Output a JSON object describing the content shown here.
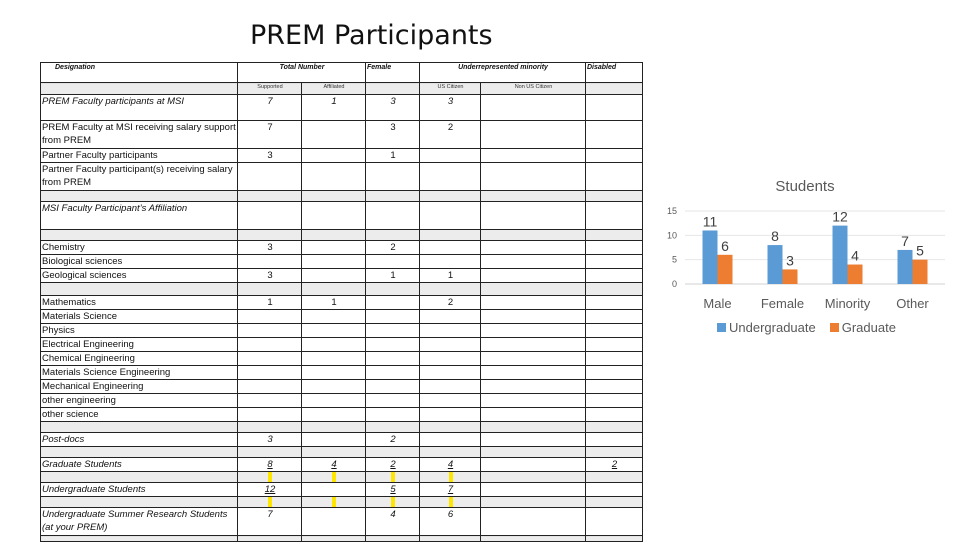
{
  "slide": {
    "title": "PREM Participants"
  },
  "table": {
    "headers": {
      "designation": "Designation",
      "total_number": "Total Number",
      "female": "Female",
      "underrepresented": "Underrepresented minority",
      "disabled": "Disabled"
    },
    "subheaders": {
      "supported": "Supported",
      "affiliated": "Affiliated",
      "us_citizen": "US Citizen",
      "non_us_citizen": "Non US Citizen"
    },
    "rows": [
      {
        "label": "PREM Faculty participants at MSI",
        "supported": "7",
        "affiliated": "1",
        "female": "3",
        "us": "3",
        "nonus": "",
        "disabled": ""
      },
      {
        "label": "PREM Faculty at MSI receiving salary support from PREM",
        "supported": "7",
        "affiliated": "",
        "female": "3",
        "us": "2",
        "nonus": "",
        "disabled": ""
      },
      {
        "label": "Partner Faculty participants",
        "supported": "3",
        "affiliated": "",
        "female": "1",
        "us": "",
        "nonus": "",
        "disabled": ""
      },
      {
        "label": "Partner Faculty participant(s) receiving salary from PREM",
        "supported": "",
        "affiliated": "",
        "female": "",
        "us": "",
        "nonus": "",
        "disabled": ""
      },
      {
        "label": "MSI Faculty Participant’s Affiliation"
      },
      {
        "label": "Chemistry",
        "supported": "3",
        "affiliated": "",
        "female": "2",
        "us": "",
        "nonus": "",
        "disabled": ""
      },
      {
        "label": "Biological sciences",
        "supported": "",
        "affiliated": "",
        "female": "",
        "us": "",
        "nonus": "",
        "disabled": ""
      },
      {
        "label": "Geological sciences",
        "supported": "3",
        "affiliated": "",
        "female": "1",
        "us": "1",
        "nonus": "",
        "disabled": ""
      },
      {
        "label": "Mathematics",
        "supported": "1",
        "affiliated": "1",
        "female": "",
        "us": "2",
        "nonus": "",
        "disabled": ""
      },
      {
        "label": "Materials Science"
      },
      {
        "label": "Physics"
      },
      {
        "label": "Electrical Engineering"
      },
      {
        "label": "Chemical Engineering"
      },
      {
        "label": "Materials Science Engineering"
      },
      {
        "label": "Mechanical Engineering"
      },
      {
        "label": "other engineering"
      },
      {
        "label": "other science"
      },
      {
        "label": "Post-docs",
        "supported": "3",
        "affiliated": "",
        "female": "2",
        "us": "",
        "nonus": "",
        "disabled": ""
      },
      {
        "label": "Graduate Students",
        "supported": "8",
        "affiliated": "4",
        "female": "2",
        "us": "4",
        "nonus": "",
        "disabled": "2"
      },
      {
        "label": "Undergraduate Students",
        "supported": "12",
        "affiliated": "",
        "female": "5",
        "us": "7",
        "nonus": "",
        "disabled": ""
      },
      {
        "label": "Undergraduate Summer Research Students (at your PREM)",
        "supported": "7",
        "affiliated": "",
        "female": "4",
        "us": "6",
        "nonus": "",
        "disabled": ""
      }
    ]
  },
  "chart_data": {
    "type": "bar",
    "title": "Students",
    "categories": [
      "Male",
      "Female",
      "Minority",
      "Other"
    ],
    "series": [
      {
        "name": "Undergraduate",
        "values": [
          11,
          8,
          12,
          7
        ],
        "color": "#5b9bd5"
      },
      {
        "name": "Graduate",
        "values": [
          6,
          3,
          4,
          5
        ],
        "color": "#ed7d31"
      }
    ],
    "ylim": [
      0,
      15
    ],
    "yticks": [
      "0",
      "5",
      "10",
      "15"
    ],
    "grid": true,
    "legend": "bottom",
    "data_labels": true
  }
}
